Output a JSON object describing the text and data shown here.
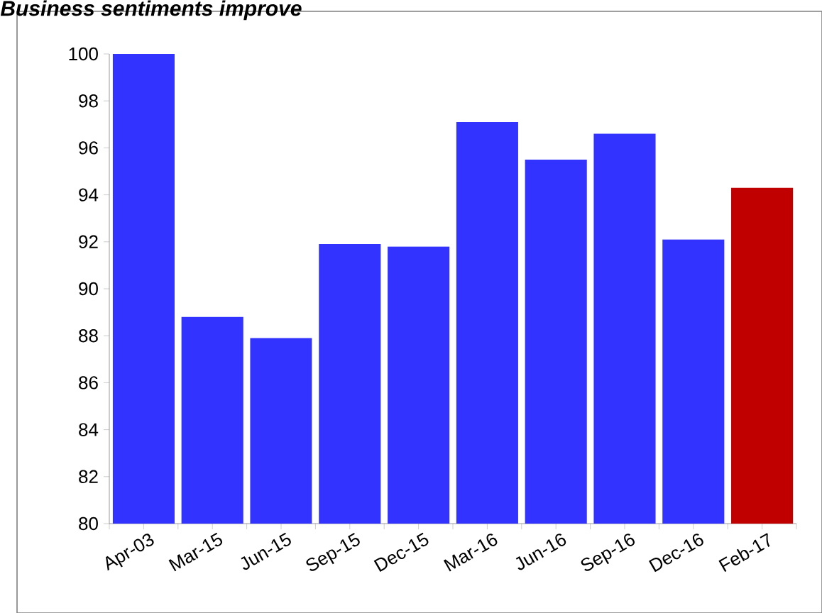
{
  "chart_data": {
    "type": "bar",
    "title": "Business sentiments improve",
    "categories": [
      "Apr-03",
      "Mar-15",
      "Jun-15",
      "Sep-15",
      "Dec-15",
      "Mar-16",
      "Jun-16",
      "Sep-16",
      "Dec-16",
      "Feb-17"
    ],
    "values": [
      100,
      88.8,
      87.9,
      91.9,
      91.8,
      97.1,
      95.5,
      96.6,
      92.1,
      94.3
    ],
    "colors": [
      "#3333ff",
      "#3333ff",
      "#3333ff",
      "#3333ff",
      "#3333ff",
      "#3333ff",
      "#3333ff",
      "#3333ff",
      "#3333ff",
      "#c00000"
    ],
    "ylim": [
      80,
      100
    ],
    "yticks": [
      80,
      82,
      84,
      86,
      88,
      90,
      92,
      94,
      96,
      98,
      100
    ],
    "grid": false
  }
}
